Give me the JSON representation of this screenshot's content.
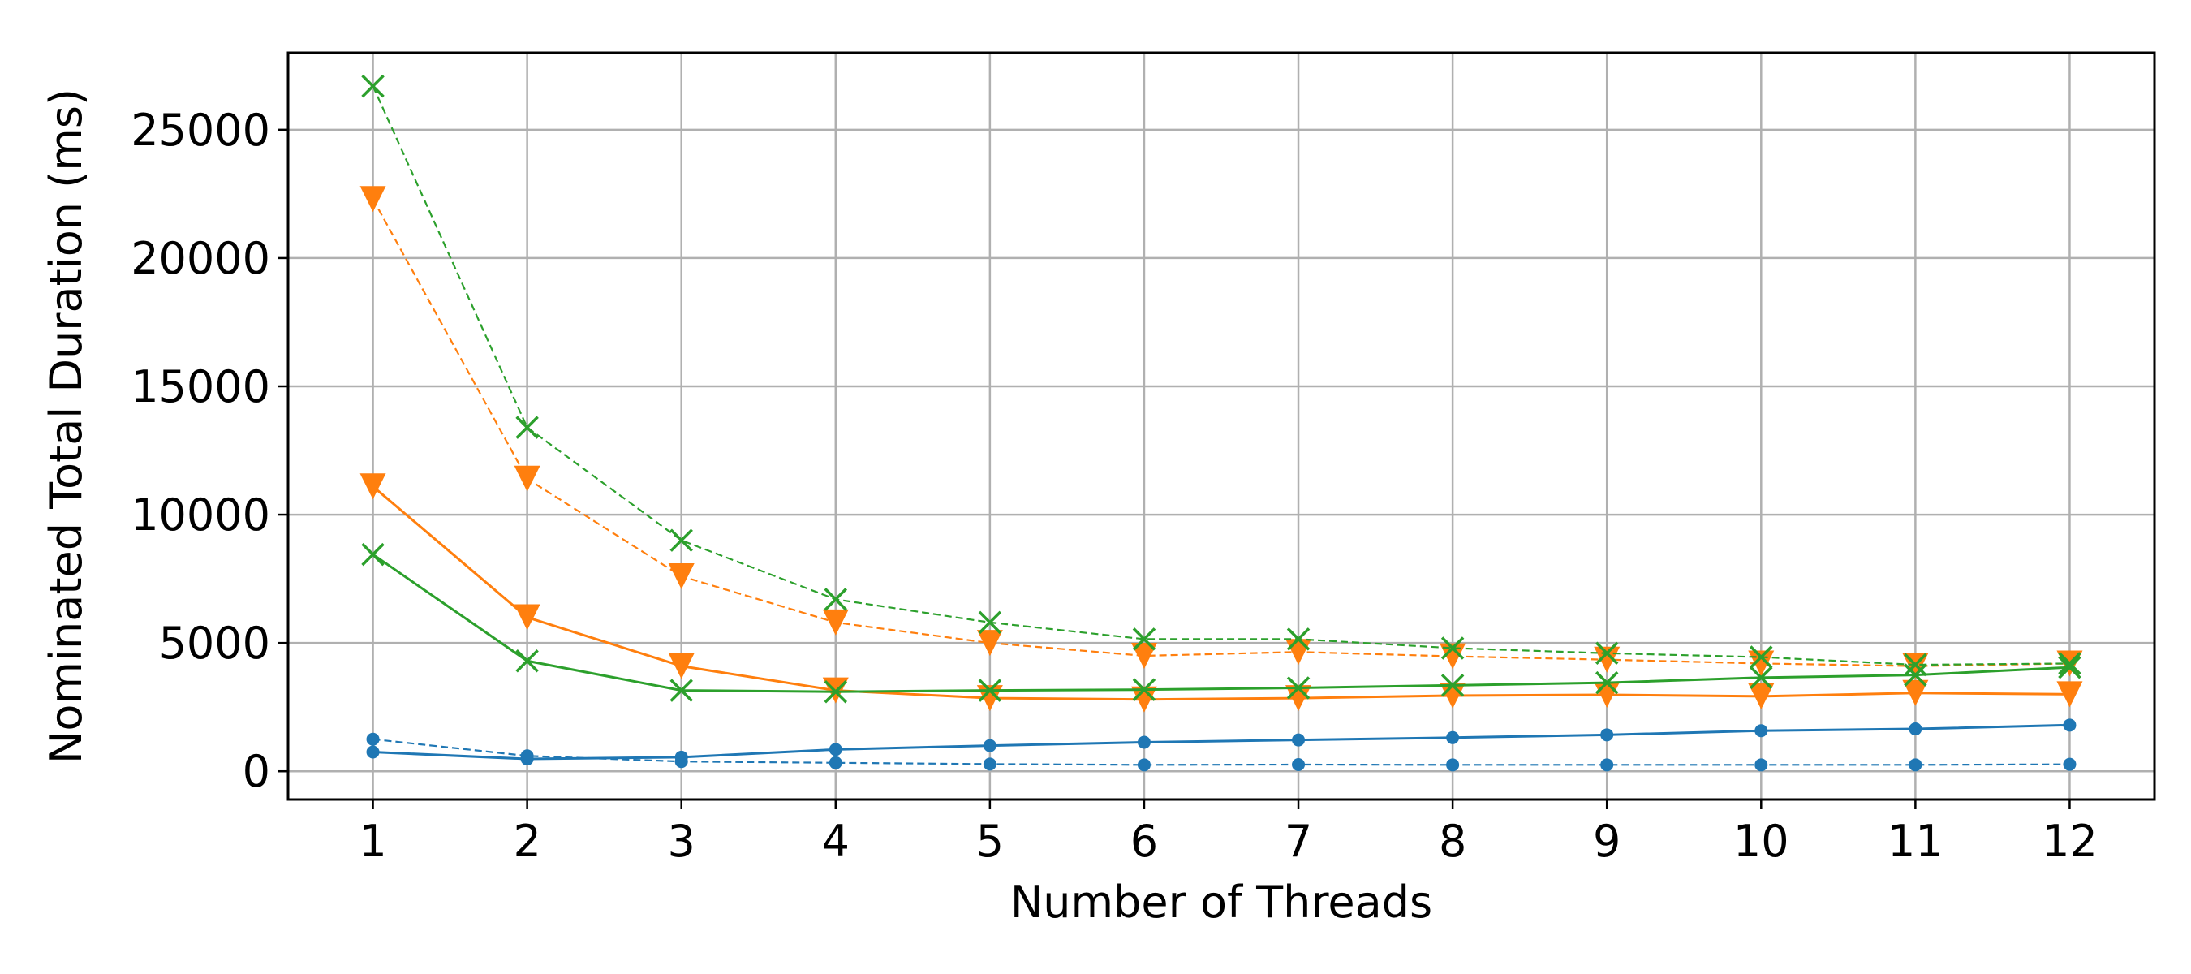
{
  "chart_data": {
    "type": "line",
    "title": "",
    "xlabel": "Number of Threads",
    "ylabel": "Nominated Total Duration (ms)",
    "x": [
      1,
      2,
      3,
      4,
      5,
      6,
      7,
      8,
      9,
      10,
      11,
      12
    ],
    "xlim": [
      0.45,
      12.55
    ],
    "ylim": [
      -1100,
      28000
    ],
    "xticks": [
      1,
      2,
      3,
      4,
      5,
      6,
      7,
      8,
      9,
      10,
      11,
      12
    ],
    "yticks": [
      0,
      5000,
      10000,
      15000,
      20000,
      25000
    ],
    "grid": true,
    "series": [
      {
        "color": "#1f77b4",
        "marker": "circle",
        "linestyle": "solid",
        "values": [
          750,
          480,
          550,
          850,
          1000,
          1130,
          1220,
          1310,
          1420,
          1580,
          1650,
          1800
        ]
      },
      {
        "color": "#1f77b4",
        "marker": "circle",
        "linestyle": "dashed",
        "values": [
          1250,
          600,
          380,
          330,
          280,
          250,
          260,
          250,
          250,
          250,
          250,
          270
        ]
      },
      {
        "color": "#ff7f0e",
        "marker": "triangle-down",
        "linestyle": "solid",
        "values": [
          11100,
          6000,
          4100,
          3150,
          2850,
          2800,
          2850,
          2950,
          2980,
          2920,
          3050,
          3000
        ]
      },
      {
        "color": "#ff7f0e",
        "marker": "triangle-down",
        "linestyle": "dashed",
        "values": [
          22300,
          11400,
          7600,
          5800,
          5000,
          4500,
          4650,
          4480,
          4350,
          4200,
          4100,
          4200
        ]
      },
      {
        "color": "#2ca02c",
        "marker": "x",
        "linestyle": "solid",
        "values": [
          8450,
          4300,
          3150,
          3100,
          3150,
          3180,
          3250,
          3350,
          3450,
          3650,
          3750,
          4050
        ]
      },
      {
        "color": "#2ca02c",
        "marker": "x",
        "linestyle": "dashed",
        "values": [
          26700,
          13400,
          9000,
          6700,
          5800,
          5150,
          5150,
          4800,
          4600,
          4450,
          4150,
          4200
        ]
      }
    ]
  }
}
